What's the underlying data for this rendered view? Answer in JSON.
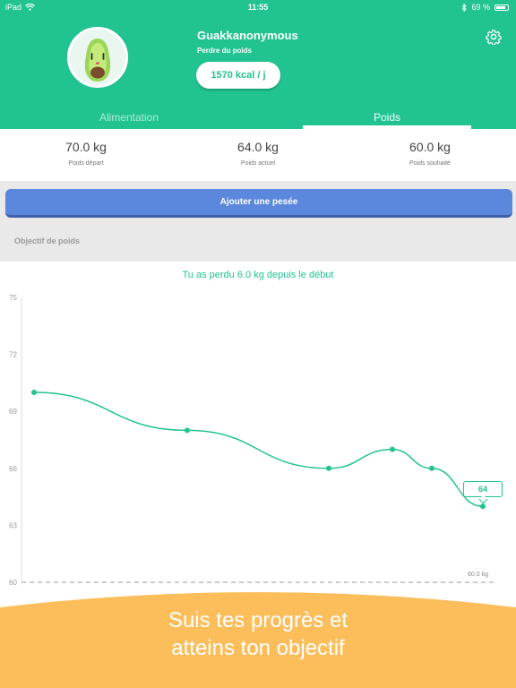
{
  "status_bar": {
    "device": "iPad",
    "time": "11:55",
    "battery": "69 %"
  },
  "profile": {
    "username": "Guakkanonymous",
    "goal": "Perdre du poids",
    "kcal": "1570 kcal / j"
  },
  "tabs": [
    {
      "label": "Alimentation",
      "active": false
    },
    {
      "label": "Poids",
      "active": true
    }
  ],
  "stats": [
    {
      "value": "70.0 kg",
      "label": "Poids départ"
    },
    {
      "value": "64.0 kg",
      "label": "Poids actuel"
    },
    {
      "value": "60.0 kg",
      "label": "Poids souhaité"
    }
  ],
  "add_button": "Ajouter une pesée",
  "section_title": "Objectif de poids",
  "chart": {
    "message": "Tu as perdu 6.0 kg depuis le début",
    "tooltip": "64",
    "goal_label": "60.0 kg"
  },
  "chart_data": {
    "type": "line",
    "ylim": [
      60,
      75
    ],
    "yticks": [
      "75",
      "72",
      "69",
      "66",
      "63",
      "60"
    ],
    "series": [
      {
        "values": [
          70,
          68,
          66,
          67,
          66,
          64
        ]
      }
    ],
    "goal_line": 60,
    "grid": false
  },
  "banner": {
    "line1": "Suis tes progrès et",
    "line2": "atteins ton objectif"
  },
  "colors": {
    "primary": "#21c391",
    "button": "#5b88dc",
    "banner": "#fbbe5b"
  }
}
